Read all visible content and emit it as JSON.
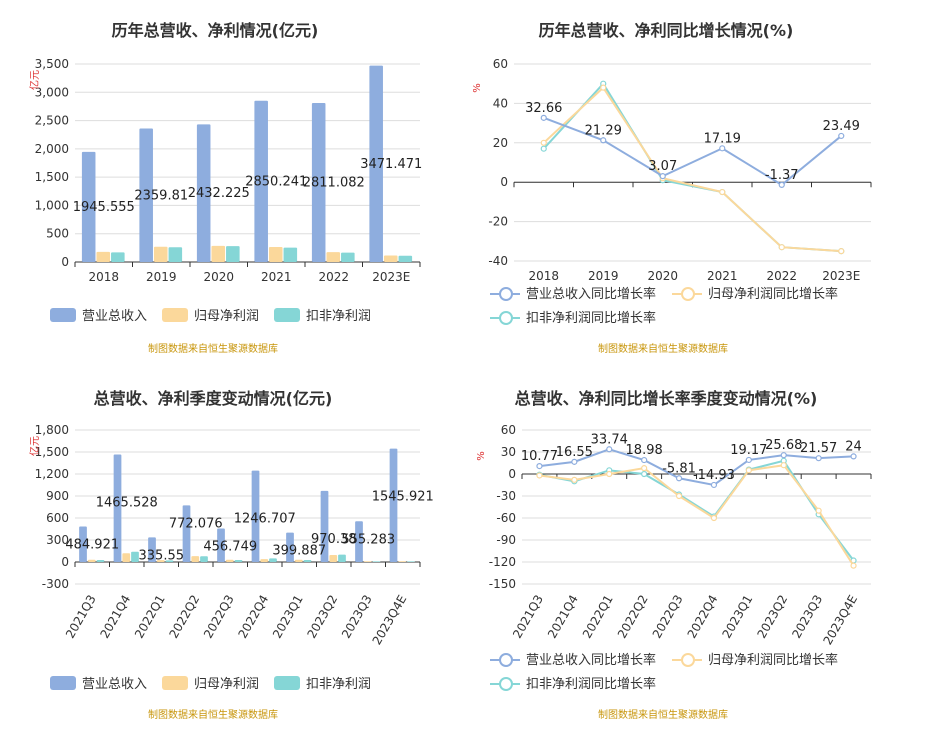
{
  "colors": {
    "revenue": "#8eadde",
    "parent": "#fbd89b",
    "deducted": "#85d6d6",
    "revenue_line": "#8eadde",
    "parent_line": "#fbd89b",
    "deducted_line": "#85d6d6",
    "axis": "#333333",
    "grid": "#dddddd"
  },
  "source_text": "制图数据来自恒生聚源数据库",
  "legend_bar": [
    "营业总收入",
    "归母净利润",
    "扣非净利润"
  ],
  "legend_line": [
    "营业总收入同比增长率",
    "归母净利润同比增长率",
    "扣非净利润同比增长率"
  ],
  "chart_data": [
    {
      "id": "annual_bar",
      "type": "bar",
      "title": "历年总营收、净利情况(亿元)",
      "ylabel": "亿元",
      "categories": [
        "2018",
        "2019",
        "2020",
        "2021",
        "2022",
        "2023E"
      ],
      "ylim": [
        0,
        3500
      ],
      "yticks": [
        "0",
        "500",
        "1,000",
        "1,500",
        "2,000",
        "2,500",
        "3,000",
        "3,500"
      ],
      "series": [
        {
          "name": "营业总收入",
          "values": [
            1945.555,
            2359.81,
            2432.225,
            2850.241,
            2811.082,
            3471.471
          ],
          "labels": [
            "1945.555",
            "2359.81",
            "2432.225",
            "2850.241",
            "2811.082",
            "3471.471"
          ]
        },
        {
          "name": "归母净利润",
          "values": [
            180,
            270,
            285,
            265,
            175,
            115
          ]
        },
        {
          "name": "扣非净利润",
          "values": [
            170,
            260,
            280,
            255,
            165,
            110
          ]
        }
      ],
      "legend": "bottom",
      "grid": true
    },
    {
      "id": "annual_line",
      "type": "line",
      "title": "历年总营收、净利同比增长情况(%)",
      "ylabel": "%",
      "categories": [
        "2018",
        "2019",
        "2020",
        "2021",
        "2022",
        "2023E"
      ],
      "ylim": [
        -40,
        60
      ],
      "yticks": [
        "-40",
        "-20",
        "0",
        "20",
        "40",
        "60"
      ],
      "series": [
        {
          "name": "营业总收入同比增长率",
          "values": [
            32.66,
            21.29,
            3.07,
            17.19,
            -1.37,
            23.49
          ],
          "labels": [
            "32.66",
            "21.29",
            "3.07",
            "17.19",
            "-1.37",
            "23.49"
          ]
        },
        {
          "name": "归母净利润同比增长率",
          "values": [
            20,
            48,
            2,
            -5,
            -33,
            -35
          ]
        },
        {
          "name": "扣非净利润同比增长率",
          "values": [
            17,
            50,
            1,
            -5,
            -33,
            -35
          ]
        }
      ],
      "legend": "bottom",
      "grid": true
    },
    {
      "id": "quarter_bar",
      "type": "bar",
      "title": "总营收、净利季度变动情况(亿元)",
      "ylabel": "亿元",
      "categories": [
        "2021Q3",
        "2021Q4",
        "2022Q1",
        "2022Q2",
        "2022Q3",
        "2022Q4",
        "2023Q1",
        "2023Q2",
        "2023Q3",
        "2023Q4E"
      ],
      "ylim": [
        -300,
        1800
      ],
      "yticks": [
        "-300",
        "0",
        "300",
        "600",
        "900",
        "1,200",
        "1,500",
        "1,800"
      ],
      "series": [
        {
          "name": "营业总收入",
          "values": [
            484.921,
            1465.528,
            335.55,
            772.076,
            456.749,
            1246.707,
            399.887,
            970.38,
            555.283,
            1545.921
          ],
          "labels": [
            "484.921",
            "1465.528",
            "335.55",
            "772.076",
            "456.749",
            "1246.707",
            "399.887",
            "970.38",
            "555.283",
            "1545.921"
          ]
        },
        {
          "name": "归母净利润",
          "values": [
            30,
            120,
            25,
            80,
            30,
            40,
            30,
            95,
            10,
            10
          ]
        },
        {
          "name": "扣非净利润",
          "values": [
            28,
            140,
            22,
            78,
            28,
            50,
            28,
            100,
            8,
            8
          ]
        }
      ],
      "legend": "bottom",
      "grid": true
    },
    {
      "id": "quarter_line",
      "type": "line",
      "title": "总营收、净利同比增长率季度变动情况(%)",
      "ylabel": "%",
      "categories": [
        "2021Q3",
        "2021Q4",
        "2022Q1",
        "2022Q2",
        "2022Q3",
        "2022Q4",
        "2023Q1",
        "2023Q2",
        "2023Q3",
        "2023Q4E"
      ],
      "ylim": [
        -150,
        60
      ],
      "yticks": [
        "-150",
        "-120",
        "-90",
        "-60",
        "-30",
        "0",
        "30",
        "60"
      ],
      "series": [
        {
          "name": "营业总收入同比增长率",
          "values": [
            10.77,
            16.55,
            33.74,
            18.98,
            -5.81,
            -14.93,
            19.17,
            25.68,
            21.57,
            24
          ],
          "labels": [
            "10.77",
            "16.55",
            "33.74",
            "18.98",
            "-5.81",
            "-14.93",
            "19.17",
            "25.68",
            "21.57",
            "24"
          ]
        },
        {
          "name": "归母净利润同比增长率",
          "values": [
            -2,
            -8,
            0,
            8,
            -30,
            -60,
            5,
            12,
            -50,
            -125
          ]
        },
        {
          "name": "扣非净利润同比增长率",
          "values": [
            -1,
            -10,
            5,
            0,
            -28,
            -58,
            6,
            18,
            -55,
            -118
          ]
        }
      ],
      "legend": "bottom",
      "grid": true
    }
  ]
}
